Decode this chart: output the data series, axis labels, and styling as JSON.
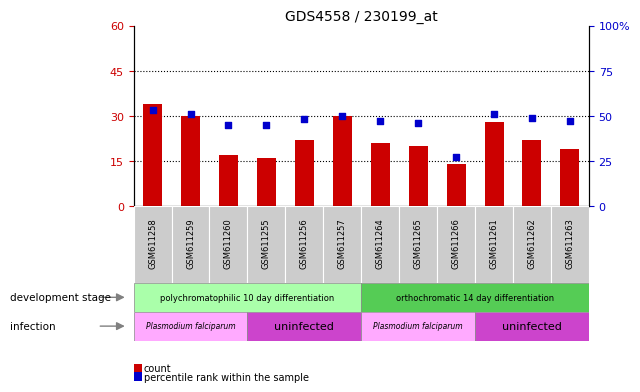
{
  "title": "GDS4558 / 230199_at",
  "samples": [
    "GSM611258",
    "GSM611259",
    "GSM611260",
    "GSM611255",
    "GSM611256",
    "GSM611257",
    "GSM611264",
    "GSM611265",
    "GSM611266",
    "GSM611261",
    "GSM611262",
    "GSM611263"
  ],
  "counts": [
    34,
    30,
    17,
    16,
    22,
    30,
    21,
    20,
    14,
    28,
    22,
    19
  ],
  "percentile_ranks": [
    53,
    51,
    45,
    45,
    48,
    50,
    47,
    46,
    27,
    51,
    49,
    47
  ],
  "bar_color": "#cc0000",
  "dot_color": "#0000cc",
  "left_ylim": [
    0,
    60
  ],
  "right_ylim": [
    0,
    100
  ],
  "left_yticks": [
    0,
    15,
    30,
    45,
    60
  ],
  "right_yticks": [
    0,
    25,
    50,
    75,
    100
  ],
  "grid_yticks": [
    15,
    30,
    45
  ],
  "dev_stage_groups": [
    {
      "label": "polychromatophilic 10 day differentiation",
      "start": 0,
      "end": 6,
      "color": "#aaffaa"
    },
    {
      "label": "orthochromatic 14 day differentiation",
      "start": 6,
      "end": 12,
      "color": "#55cc55"
    }
  ],
  "infection_groups": [
    {
      "label": "Plasmodium falciparum",
      "start": 0,
      "end": 3,
      "color": "#ffaaff"
    },
    {
      "label": "uninfected",
      "start": 3,
      "end": 6,
      "color": "#cc44cc"
    },
    {
      "label": "Plasmodium falciparum",
      "start": 6,
      "end": 9,
      "color": "#ffaaff"
    },
    {
      "label": "uninfected",
      "start": 9,
      "end": 12,
      "color": "#cc44cc"
    }
  ],
  "legend_count_color": "#cc0000",
  "legend_pct_color": "#0000cc",
  "xlabel_dev": "development stage",
  "xlabel_inf": "infection",
  "bg_color": "#ffffff",
  "tick_bg_color": "#cccccc"
}
